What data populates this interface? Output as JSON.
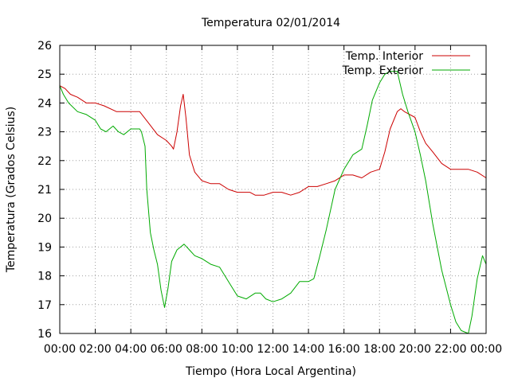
{
  "chart_data": {
    "type": "line",
    "title": "Temperatura 02/01/2014",
    "xlabel": "Tiempo (Hora Local Argentina)",
    "ylabel": "Temperatura (Grados Celsius)",
    "xlim": [
      0,
      24
    ],
    "ylim": [
      16,
      26
    ],
    "x_tick_labels": [
      "00:00",
      "02:00",
      "04:00",
      "06:00",
      "08:00",
      "10:00",
      "12:00",
      "14:00",
      "16:00",
      "18:00",
      "20:00",
      "22:00",
      "00:00"
    ],
    "y_tick_labels": [
      "16",
      "17",
      "18",
      "19",
      "20",
      "21",
      "22",
      "23",
      "24",
      "25",
      "26"
    ],
    "grid": true,
    "legend_position": "top-right",
    "series": [
      {
        "name": "Temp. Interior",
        "color": "#cc0000",
        "points": [
          [
            0.0,
            24.6
          ],
          [
            0.3,
            24.5
          ],
          [
            0.6,
            24.3
          ],
          [
            1.0,
            24.2
          ],
          [
            1.5,
            24.0
          ],
          [
            2.0,
            24.0
          ],
          [
            2.5,
            23.9
          ],
          [
            3.2,
            23.7
          ],
          [
            4.5,
            23.7
          ],
          [
            5.0,
            23.3
          ],
          [
            5.5,
            22.9
          ],
          [
            6.0,
            22.7
          ],
          [
            6.3,
            22.5
          ],
          [
            6.4,
            22.4
          ],
          [
            6.6,
            23.0
          ],
          [
            6.8,
            23.9
          ],
          [
            6.95,
            24.3
          ],
          [
            7.1,
            23.5
          ],
          [
            7.3,
            22.2
          ],
          [
            7.6,
            21.6
          ],
          [
            8.0,
            21.3
          ],
          [
            8.5,
            21.2
          ],
          [
            9.0,
            21.2
          ],
          [
            9.5,
            21.0
          ],
          [
            10.0,
            20.9
          ],
          [
            10.7,
            20.9
          ],
          [
            11.0,
            20.8
          ],
          [
            11.5,
            20.8
          ],
          [
            12.0,
            20.9
          ],
          [
            12.5,
            20.9
          ],
          [
            13.0,
            20.8
          ],
          [
            13.5,
            20.9
          ],
          [
            14.0,
            21.1
          ],
          [
            14.5,
            21.1
          ],
          [
            15.0,
            21.2
          ],
          [
            15.5,
            21.3
          ],
          [
            16.0,
            21.5
          ],
          [
            16.5,
            21.5
          ],
          [
            17.0,
            21.4
          ],
          [
            17.5,
            21.6
          ],
          [
            18.0,
            21.7
          ],
          [
            18.3,
            22.3
          ],
          [
            18.6,
            23.1
          ],
          [
            19.0,
            23.7
          ],
          [
            19.2,
            23.8
          ],
          [
            19.4,
            23.7
          ],
          [
            20.0,
            23.5
          ],
          [
            20.3,
            23.0
          ],
          [
            20.6,
            22.6
          ],
          [
            21.0,
            22.3
          ],
          [
            21.5,
            21.9
          ],
          [
            22.0,
            21.7
          ],
          [
            23.0,
            21.7
          ],
          [
            23.5,
            21.6
          ],
          [
            24.0,
            21.4
          ]
        ]
      },
      {
        "name": "Temp. Exterior",
        "color": "#00aa00",
        "points": [
          [
            0.0,
            24.6
          ],
          [
            0.2,
            24.3
          ],
          [
            0.5,
            24.0
          ],
          [
            1.0,
            23.7
          ],
          [
            1.5,
            23.6
          ],
          [
            2.0,
            23.4
          ],
          [
            2.3,
            23.1
          ],
          [
            2.6,
            23.0
          ],
          [
            3.0,
            23.2
          ],
          [
            3.3,
            23.0
          ],
          [
            3.6,
            22.9
          ],
          [
            4.0,
            23.1
          ],
          [
            4.5,
            23.1
          ],
          [
            4.6,
            23.0
          ],
          [
            4.8,
            22.5
          ],
          [
            4.9,
            21.0
          ],
          [
            5.1,
            19.5
          ],
          [
            5.3,
            18.9
          ],
          [
            5.5,
            18.4
          ],
          [
            5.7,
            17.5
          ],
          [
            5.9,
            16.9
          ],
          [
            6.1,
            17.6
          ],
          [
            6.3,
            18.5
          ],
          [
            6.6,
            18.9
          ],
          [
            7.0,
            19.1
          ],
          [
            7.3,
            18.9
          ],
          [
            7.6,
            18.7
          ],
          [
            8.0,
            18.6
          ],
          [
            8.5,
            18.4
          ],
          [
            9.0,
            18.3
          ],
          [
            9.3,
            18.0
          ],
          [
            9.6,
            17.7
          ],
          [
            10.0,
            17.3
          ],
          [
            10.5,
            17.2
          ],
          [
            11.0,
            17.4
          ],
          [
            11.3,
            17.4
          ],
          [
            11.6,
            17.2
          ],
          [
            12.0,
            17.1
          ],
          [
            12.5,
            17.2
          ],
          [
            13.0,
            17.4
          ],
          [
            13.5,
            17.8
          ],
          [
            14.0,
            17.8
          ],
          [
            14.3,
            17.9
          ],
          [
            14.6,
            18.6
          ],
          [
            15.0,
            19.6
          ],
          [
            15.5,
            21.0
          ],
          [
            16.0,
            21.7
          ],
          [
            16.5,
            22.2
          ],
          [
            17.0,
            22.4
          ],
          [
            17.3,
            23.2
          ],
          [
            17.6,
            24.1
          ],
          [
            18.0,
            24.7
          ],
          [
            18.3,
            25.0
          ],
          [
            18.6,
            25.1
          ],
          [
            19.0,
            25.1
          ],
          [
            19.3,
            24.3
          ],
          [
            19.6,
            23.7
          ],
          [
            20.0,
            23.0
          ],
          [
            20.3,
            22.2
          ],
          [
            20.6,
            21.3
          ],
          [
            21.0,
            19.8
          ],
          [
            21.5,
            18.2
          ],
          [
            22.0,
            17.0
          ],
          [
            22.3,
            16.4
          ],
          [
            22.6,
            16.1
          ],
          [
            23.0,
            16.0
          ],
          [
            23.2,
            16.6
          ],
          [
            23.5,
            17.9
          ],
          [
            23.8,
            18.7
          ],
          [
            24.0,
            18.4
          ]
        ]
      }
    ]
  }
}
